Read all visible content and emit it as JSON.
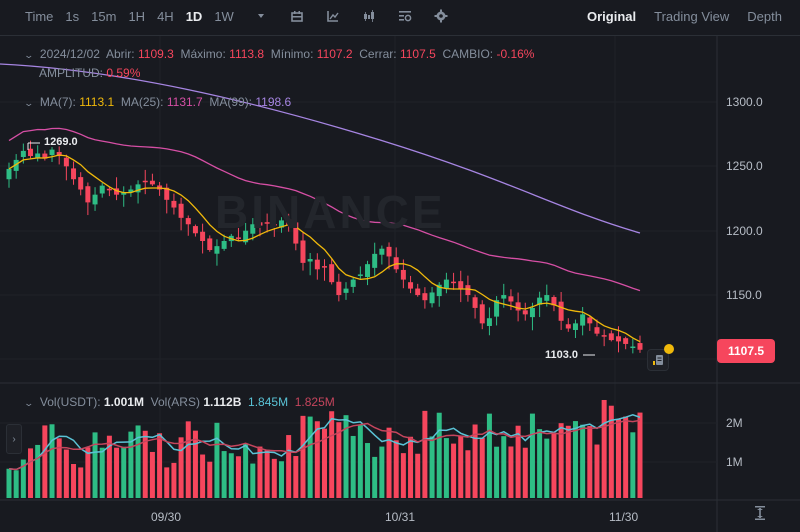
{
  "toolbar": {
    "intervals": [
      {
        "label": "Time",
        "active": false
      },
      {
        "label": "1s",
        "active": false
      },
      {
        "label": "15m",
        "active": false
      },
      {
        "label": "1H",
        "active": false
      },
      {
        "label": "4H",
        "active": false
      },
      {
        "label": "1D",
        "active": true
      },
      {
        "label": "1W",
        "active": false
      }
    ],
    "icons": [
      "dropdown-caret-icon",
      "calendar-icon",
      "indicator-chart-icon",
      "candlestick-type-icon",
      "display-settings-icon",
      "gear-icon"
    ],
    "view_tabs": [
      {
        "label": "Original",
        "active": true
      },
      {
        "label": "Trading View",
        "active": false
      },
      {
        "label": "Depth",
        "active": false
      }
    ]
  },
  "ohlc": {
    "date": "2024/12/02",
    "open_label": "Abrir:",
    "open": "1109.3",
    "high_label": "Máximo:",
    "high": "1113.8",
    "low_label": "Mínimo:",
    "low": "1107.2",
    "close_label": "Cerrar:",
    "close": "1107.5",
    "change_label": "CAMBIO:",
    "change": "-0.16%",
    "amplitude_label": "AMPLITUD:",
    "amplitude": "0.59%"
  },
  "ma": {
    "ma7_label": "MA(7):",
    "ma7": "1113.1",
    "ma25_label": "MA(25):",
    "ma25": "1131.7",
    "ma99_label": "MA(99):",
    "ma99": "1198.6"
  },
  "volume": {
    "usdt_label": "Vol(USDT):",
    "usdt": "1.001M",
    "ars_label": "Vol(ARS)",
    "ars": "1.112B",
    "ma1": "1.845M",
    "ma2": "1.825M",
    "axis": [
      "2M",
      "1M"
    ]
  },
  "price_axis": [
    "1300.0",
    "1250.0",
    "1200.0",
    "1150.0"
  ],
  "current_price": "1107.5",
  "high_marker": "1269.0",
  "low_marker": "1103.0",
  "watermark": "BINANCE",
  "date_axis": [
    "09/30",
    "10/31",
    "11/30"
  ],
  "colors": {
    "up": "#2ebd85",
    "down": "#f6465d",
    "ma7": "#f0b90b",
    "ma25": "#d64fa5",
    "ma99": "#a685e2",
    "background": "#181a20"
  },
  "chart_data": {
    "type": "candlestick",
    "title": "1D candles",
    "ylim": [
      1090,
      1340
    ],
    "x_ticks": [
      "09/30",
      "10/31",
      "11/30"
    ],
    "y_ticks": [
      1150,
      1200,
      1250,
      1300
    ],
    "ohlc_last": {
      "date": "2024/12/02",
      "open": 1109.3,
      "high": 1113.8,
      "low": 1107.2,
      "close": 1107.5
    },
    "series": [
      {
        "name": "MA(7)",
        "last": 1113.1
      },
      {
        "name": "MA(25)",
        "last": 1131.7
      },
      {
        "name": "MA(99)",
        "last": 1198.6
      }
    ],
    "annotations": [
      {
        "label": "1269.0",
        "type": "period-high"
      },
      {
        "label": "1103.0",
        "type": "period-low"
      }
    ],
    "volume": {
      "axis_ticks": [
        "1M",
        "2M"
      ],
      "last_usdt": "1.001M",
      "last_ars": "1.112B",
      "ma_values": [
        "1.845M",
        "1.825M"
      ]
    }
  }
}
